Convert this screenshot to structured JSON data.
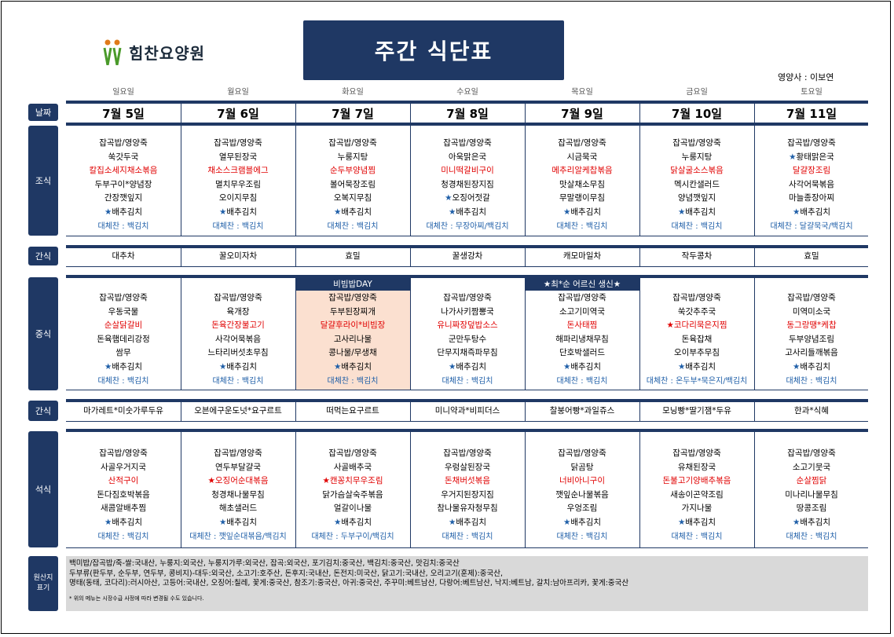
{
  "header": {
    "logo_text": "힘찬요양원",
    "title": "주간 식단표",
    "nutritionist": "영양사 : 이보연"
  },
  "days": [
    {
      "dow": "일요일",
      "date": "7월 5일"
    },
    {
      "dow": "월요일",
      "date": "7월 6일"
    },
    {
      "dow": "화요일",
      "date": "7월 7일"
    },
    {
      "dow": "수요일",
      "date": "7월 8일"
    },
    {
      "dow": "목요일",
      "date": "7월 9일"
    },
    {
      "dow": "금요일",
      "date": "7월 10일"
    },
    {
      "dow": "토요일",
      "date": "7월 11일"
    }
  ],
  "labels": {
    "date": "날짜",
    "breakfast": "조식",
    "snack": "간식",
    "lunch": "중식",
    "dinner": "석식",
    "origin": "원산지 표기"
  },
  "banners": {
    "tuesday_lunch": "비빔밥DAY",
    "thursday_lunch": "★최*순 어르신 생신★"
  },
  "breakfast": [
    {
      "items": [
        "잡곡밥/영양죽",
        "쑥갓두국",
        "칼집소세지채소볶음",
        "두부구이*양념장",
        "간장깻잎지",
        "★배추김치"
      ],
      "red": [
        2
      ],
      "sub": "대체찬 : 백김치"
    },
    {
      "items": [
        "잡곡밥/영양죽",
        "열무된장국",
        "채소스크램블에그",
        "멸치무우조림",
        "오이지무침",
        "★배추김치"
      ],
      "red": [
        2
      ],
      "sub": "대체찬 : 백김치"
    },
    {
      "items": [
        "잡곡밥/영양죽",
        "누룽지탕",
        "순두부양념찜",
        "볼어묵장조림",
        "오복지무침",
        "★배추김치"
      ],
      "red": [
        2
      ],
      "sub": "대체찬 : 백김치"
    },
    {
      "items": [
        "잡곡밥/영양죽",
        "아욱맑은국",
        "미니떡갈비구이",
        "청경채된장지짐",
        "★오징어젓갈",
        "★배추김치"
      ],
      "red": [
        2
      ],
      "sub": "대체찬 : 무장아찌/백김치"
    },
    {
      "items": [
        "잡곡밥/영양죽",
        "시금묵국",
        "메추리알케찹볶음",
        "맛살채소무침",
        "무말랭이무침",
        "★배추김치"
      ],
      "red": [
        2
      ],
      "sub": "대체찬 : 백김치"
    },
    {
      "items": [
        "잡곡밥/영양죽",
        "누룽지탕",
        "닭살굴소스볶음",
        "멕시칸샐러드",
        "양념깻잎지",
        "★배추김치"
      ],
      "red": [
        2
      ],
      "sub": "대체찬 : 백김치"
    },
    {
      "items": [
        "잡곡밥/영양죽",
        "★황태맑은국",
        "달걀장조림",
        "사각어묵볶음",
        "마늘종장아찌",
        "★배추김치"
      ],
      "red": [
        2
      ],
      "sub": "대체찬 : 달걀묵국/백김치"
    }
  ],
  "snack1": [
    "대추차",
    "꿀오미자차",
    "효밀",
    "꿀생강차",
    "캐모마일차",
    "작두콩차",
    "효밀"
  ],
  "lunch": [
    {
      "items": [
        "잡곡밥/영양죽",
        "우동국물",
        "순살닭갈비",
        "돈육햄데리강정",
        "쌈무",
        "★배추김치"
      ],
      "red": [
        2
      ],
      "sub": "대체찬 : 백김치"
    },
    {
      "items": [
        "잡곡밥/영양죽",
        "육개장",
        "돈육간장불고기",
        "사각어묵볶음",
        "느타리버섯초무침",
        "★배추김치"
      ],
      "red": [
        2
      ],
      "sub": "대체찬 : 백김치"
    },
    {
      "items": [
        "잡곡밥/영양죽",
        "두부된장찌개",
        "달걀후라이*비빔장",
        "고사리나물",
        "콩나물/무생채",
        "★배추김치"
      ],
      "red": [
        2
      ],
      "sub": "대체찬 : 백김치"
    },
    {
      "items": [
        "잡곡밥/영양죽",
        "나가사키짬뽕국",
        "유니짜장덮밥소스",
        "군만두탕수",
        "단무지채즉파무침",
        "★배추김치"
      ],
      "red": [
        2
      ],
      "sub": "대체찬 : 백김치"
    },
    {
      "items": [
        "잡곡밥/영양죽",
        "소고기미역국",
        "돈사태찜",
        "해파리냉채무침",
        "단호박샐러드",
        "★배추김치"
      ],
      "red": [
        2
      ],
      "sub": "대체찬 : 백김치"
    },
    {
      "items": [
        "잡곡밥/영양죽",
        "쑥갓추주국",
        "★코다리묵은지찜",
        "돈육잡채",
        "오이부추무침",
        "★배추김치"
      ],
      "red": [
        2
      ],
      "sub": "대체찬 : 온두부*묵은지/백김치"
    },
    {
      "items": [
        "잡곡밥/영양죽",
        "미역미소국",
        "동그랑땡*케찹",
        "두부양념조림",
        "고사리들깨볶음",
        "★배추김치"
      ],
      "red": [
        2
      ],
      "sub": "대체찬 : 백김치"
    }
  ],
  "snack2": [
    "마가레트*미숫가루두유",
    "오븐에구운도넛*요구르트",
    "떠먹는요구르트",
    "미니약과*비피더스",
    "찰붕어빵*과일쥬스",
    "모닝빵*딸기잼*두유",
    "한과*식혜"
  ],
  "dinner": [
    {
      "items": [
        "잡곡밥/영양죽",
        "사골우거지국",
        "산적구이",
        "돈다짐호박볶음",
        "새콤알배추찜",
        "★배추김치"
      ],
      "red": [
        2
      ],
      "sub": "대체찬 : 백김치"
    },
    {
      "items": [
        "잡곡밥/영양죽",
        "연두부달걀국",
        "★오징어순대볶음",
        "청경채나물무침",
        "해초샐러드",
        "★배추김치"
      ],
      "red": [
        2
      ],
      "sub": "대체찬 : 깻잎순대볶음/백김치"
    },
    {
      "items": [
        "잡곡밥/영양죽",
        "사골배추국",
        "★캔꽁치무우조림",
        "닭가슴살숙주볶음",
        "얼갈이나물",
        "★배추김치"
      ],
      "red": [
        2
      ],
      "sub": "대체찬 : 두부구이/백김치"
    },
    {
      "items": [
        "잡곡밥/영양죽",
        "우렁살된장국",
        "돈채버섯볶음",
        "우거지된장지짐",
        "참나물유자청무침",
        "★배추김치"
      ],
      "red": [
        2
      ],
      "sub": "대체찬 : 백김치"
    },
    {
      "items": [
        "잡곡밥/영양죽",
        "닭곰탕",
        "너비아니구이",
        "깻잎순나물볶음",
        "우엉조림",
        "★배추김치"
      ],
      "red": [
        2
      ],
      "sub": "대체찬 : 백김치"
    },
    {
      "items": [
        "잡곡밥/영양죽",
        "유채된장국",
        "돈불고기양배추볶음",
        "새송이곤약조림",
        "가지나물",
        "★배추김치"
      ],
      "red": [
        2
      ],
      "sub": "대체찬 : 백김치"
    },
    {
      "items": [
        "잡곡밥/영양죽",
        "소고기뭇국",
        "순살찜닭",
        "미나리나물무침",
        "땅콩조림",
        "★배추김치"
      ],
      "red": [
        2
      ],
      "sub": "대체찬 : 백김치"
    }
  ],
  "origin": {
    "line1": "백미밥/잡곡밥/죽-쌀:국내산, 누룽지:외국산, 누룽지가루:외국산, 잡곡:외국산, 포기김치:중국산, 백김치:중국산, 맛김치:중국산",
    "line2": "두부류(판두부, 순두부, 연두부, 콩비지)-대두:외국산, 소고기:호주산, 돈후지:국내산, 돈전지:미국산, 닭고기:국내산, 오리고기(훈제):중국산,",
    "line3": "명태(동태, 코다리):러시아산, 고등어:국내산, 오징어:칠레, 꽃게:중국산, 참조기:중국산, 아귀:중국산, 주꾸미:베트남산, 다랑어:베트남산, 낙지:베트남, 갈치:남아프리카, 꽃게:중국산",
    "note": "* 위의 메뉴는 시장수급 사정에 따라 변경될 수도 있습니다."
  },
  "colors": {
    "navy": "#1f3864",
    "red": "#e00000",
    "sub": "#1f5fa8",
    "highlight": "#fbe0d0",
    "origin_bg": "#d9d9d9"
  }
}
